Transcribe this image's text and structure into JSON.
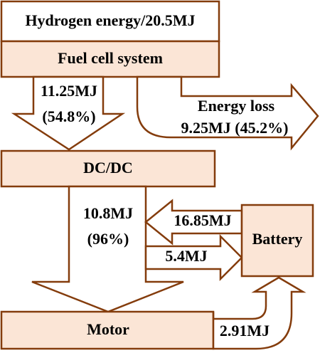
{
  "nodes": [
    {
      "label": "Hydrogen energy/20.5MJ"
    },
    {
      "label": "Fuel cell system"
    },
    {
      "label": "DC/DC"
    },
    {
      "label": "Battery"
    },
    {
      "label": "Motor"
    }
  ],
  "flows": [
    {
      "value": "11.25MJ",
      "share": "(54.8%)"
    },
    {
      "label": "Energy loss",
      "value": "9.25MJ (45.2%)"
    },
    {
      "value": "10.8MJ",
      "share": "(96%)"
    },
    {
      "value": "16.85MJ"
    },
    {
      "value": "5.4MJ"
    },
    {
      "value": "2.91MJ"
    }
  ]
}
